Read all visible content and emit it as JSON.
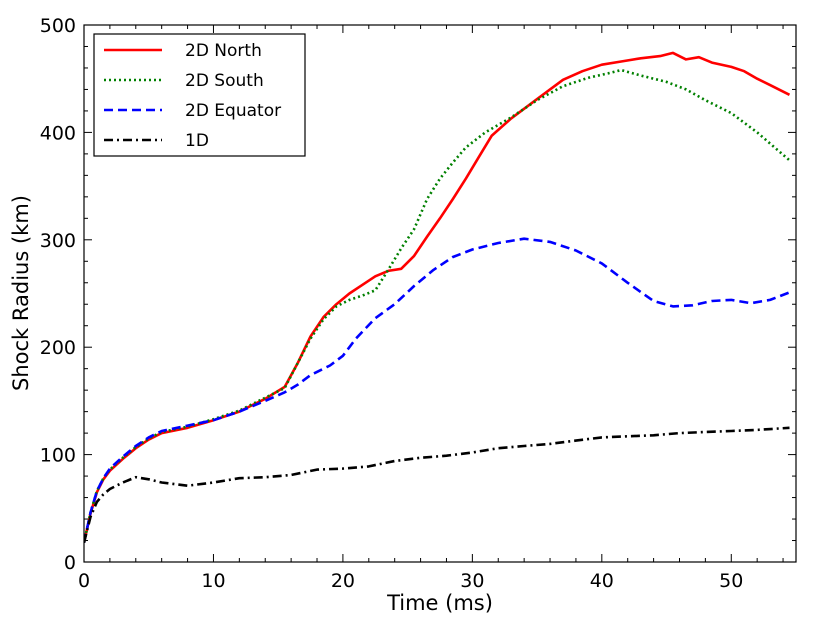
{
  "chart_data": {
    "type": "line",
    "title": "",
    "xlabel": "Time (ms)",
    "ylabel": "Shock Radius (km)",
    "xlim": [
      0,
      55
    ],
    "ylim": [
      0,
      500
    ],
    "xticks": [
      0,
      10,
      20,
      30,
      40,
      50
    ],
    "yticks": [
      0,
      100,
      200,
      300,
      400,
      500
    ],
    "legend_position": "top-left",
    "series": [
      {
        "name": "2D North",
        "color": "#ff0000",
        "style": "solid",
        "x": [
          0,
          0.5,
          1,
          1.5,
          2,
          3,
          4,
          5,
          6,
          8,
          10,
          12,
          14,
          15.5,
          16.5,
          17.5,
          18.5,
          19.5,
          20.5,
          21.5,
          22.5,
          23.5,
          24.5,
          25.5,
          26.5,
          27.5,
          28.5,
          29.5,
          30.5,
          31.5,
          33,
          35,
          37,
          38.5,
          40,
          41.5,
          43,
          44.5,
          45.5,
          46.5,
          47.5,
          48.5,
          50,
          51,
          52,
          53,
          54.5
        ],
        "values": [
          18,
          45,
          65,
          77,
          85,
          96,
          106,
          114,
          120,
          125,
          132,
          140,
          152,
          163,
          185,
          210,
          228,
          240,
          250,
          258,
          266,
          271,
          273,
          285,
          303,
          320,
          338,
          357,
          377,
          397,
          413,
          431,
          449,
          457,
          463,
          466,
          469,
          471,
          474,
          468,
          470,
          465,
          461,
          457,
          450,
          444,
          435
        ]
      },
      {
        "name": "2D South",
        "color": "#008000",
        "style": "dotted",
        "x": [
          0,
          0.5,
          1,
          1.5,
          2,
          3,
          4,
          5,
          6,
          8,
          10,
          12,
          14,
          15.5,
          16.5,
          17.5,
          18.5,
          19.5,
          20.5,
          21.5,
          22.5,
          23.5,
          24.5,
          25.5,
          26.5,
          27.5,
          28.5,
          29.5,
          31,
          33,
          35,
          37,
          39,
          40.5,
          41.5,
          43,
          45,
          46.5,
          48,
          50,
          52,
          54.5
        ],
        "values": [
          18,
          46,
          66,
          78,
          86,
          97,
          107,
          115,
          121,
          126,
          133,
          141,
          153,
          162,
          185,
          208,
          226,
          238,
          244,
          248,
          253,
          272,
          292,
          310,
          338,
          357,
          372,
          386,
          400,
          414,
          430,
          443,
          451,
          455,
          458,
          453,
          447,
          440,
          430,
          418,
          400,
          374
        ]
      },
      {
        "name": "2D Equator",
        "color": "#0000ff",
        "style": "dashed",
        "x": [
          0,
          0.5,
          1,
          1.5,
          2,
          3,
          4,
          5,
          6,
          8,
          10,
          12,
          14,
          15.5,
          16.5,
          17.5,
          19,
          20,
          21,
          22.5,
          24,
          25.5,
          27,
          28.5,
          30,
          32,
          34,
          36,
          38,
          40,
          42,
          44,
          45.5,
          47,
          48.5,
          50,
          51.5,
          53,
          54.5
        ],
        "values": [
          18,
          46,
          66,
          78,
          87,
          98,
          108,
          116,
          122,
          127,
          132,
          140,
          150,
          158,
          165,
          174,
          183,
          192,
          208,
          227,
          240,
          257,
          272,
          284,
          291,
          297,
          301,
          298,
          290,
          278,
          260,
          243,
          238,
          239,
          243,
          244,
          241,
          244,
          251
        ]
      },
      {
        "name": "1D",
        "color": "#000000",
        "style": "dashdot",
        "x": [
          0,
          0.5,
          1,
          1.5,
          2,
          3,
          4,
          5,
          6,
          8,
          10,
          12,
          14,
          16,
          18,
          20,
          22,
          24,
          26,
          28,
          30,
          32,
          34,
          36,
          38,
          40,
          42,
          44,
          46,
          48,
          50,
          52,
          54.5
        ],
        "values": [
          18,
          42,
          56,
          63,
          68,
          74,
          79,
          77,
          74,
          71,
          74,
          78,
          79,
          81,
          86,
          87,
          89,
          94,
          97,
          99,
          102,
          106,
          108,
          110,
          113,
          116,
          117,
          118,
          120,
          121,
          122,
          123,
          125
        ]
      }
    ]
  }
}
